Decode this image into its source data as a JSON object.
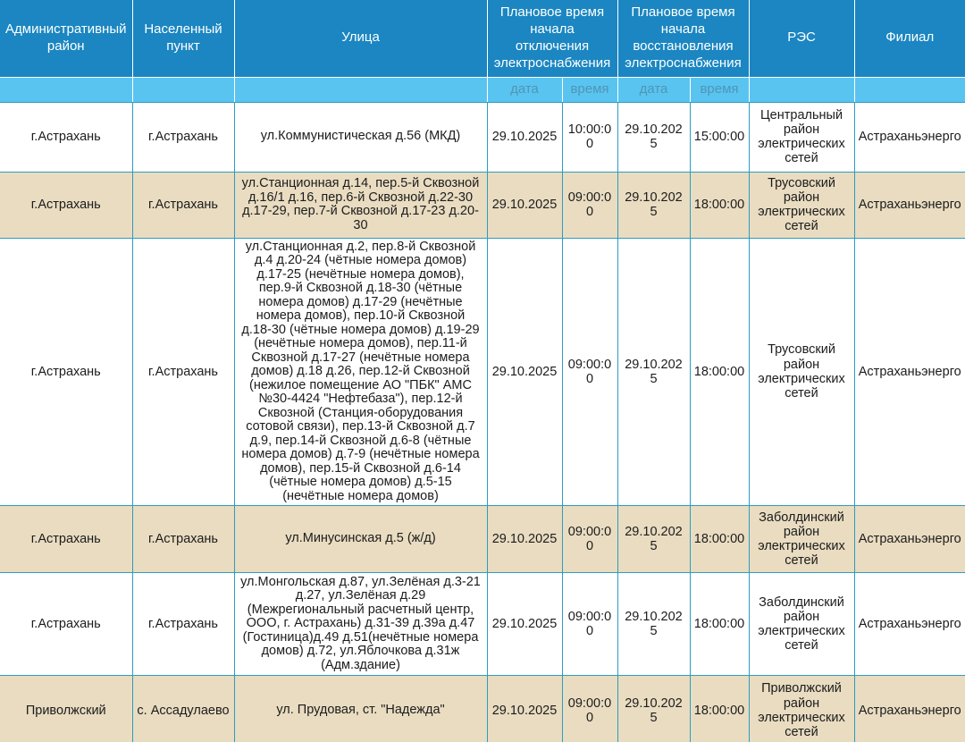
{
  "header": {
    "admin_district": "Административный район",
    "settlement": "Населенный пункт",
    "street": "Улица",
    "outage_group": "Плановое время начала отключения электроснабжения",
    "restore_group": "Плановое время начала восстановления электроснабжения",
    "res": "РЭС",
    "branch": "Филиал",
    "sub_date": "дата",
    "sub_time": "время"
  },
  "rows": [
    {
      "district": "г.Астрахань",
      "settlement": "г.Астрахань",
      "street": "ул.Коммунистическая д.56 (МКД)",
      "outage_date": "29.10.2025",
      "outage_time": "10:00:00",
      "restore_date": "29.10.2025",
      "restore_time": "15:00:00",
      "res": "Центральный район электрических сетей",
      "branch": "Астраханьэнерго"
    },
    {
      "district": "г.Астрахань",
      "settlement": "г.Астрахань",
      "street": "ул.Станционная д.14, пер.5-й Сквозной д.16/1 д.16, пер.6-й Сквозной д.22-30 д.17-29, пер.7-й Сквозной д.17-23 д.20-30",
      "outage_date": "29.10.2025",
      "outage_time": "09:00:00",
      "restore_date": "29.10.2025",
      "restore_time": "18:00:00",
      "res": "Трусовский район электрических сетей",
      "branch": "Астраханьэнерго"
    },
    {
      "district": "г.Астрахань",
      "settlement": "г.Астрахань",
      "street": "ул.Станционная д.2, пер.8-й Сквозной д.4 д.20-24 (чётные номера домов) д.17-25 (нечётные номера домов), пер.9-й Сквозной д.18-30 (чётные номера домов) д.17-29 (нечётные номера домов), пер.10-й Сквозной д.18-30 (чётные номера домов) д.19-29 (нечётные номера домов), пер.11-й Сквозной д.17-27 (нечётные номера домов) д.18 д.26, пер.12-й Сквозной (нежилое помещение АО \"ПБК\" АМС №30-4424 \"Нефтебаза\"), пер.12-й Сквозной (Станция-оборудования сотовой связи), пер.13-й Сквозной д.7 д.9, пер.14-й Сквозной д.6-8 (чётные номера домов) д.7-9 (нечётные номера домов), пер.15-й Сквозной д.6-14 (чётные номера домов) д.5-15 (нечётные номера домов)",
      "outage_date": "29.10.2025",
      "outage_time": "09:00:00",
      "restore_date": "29.10.2025",
      "restore_time": "18:00:00",
      "res": "Трусовский район электрических сетей",
      "branch": "Астраханьэнерго"
    },
    {
      "district": "г.Астрахань",
      "settlement": "г.Астрахань",
      "street": "ул.Минусинская д.5 (ж/д)",
      "outage_date": "29.10.2025",
      "outage_time": "09:00:00",
      "restore_date": "29.10.2025",
      "restore_time": "18:00:00",
      "res": "Заболдинский район электрических сетей",
      "branch": "Астраханьэнерго"
    },
    {
      "district": "г.Астрахань",
      "settlement": "г.Астрахань",
      "street": "ул.Монгольская д.87, ул.Зелёная д.3-21 д.27, ул.Зелёная д.29 (Межрегиональный расчетный центр, ООО, г. Астрахань) д.31-39 д.39а д.47 (Гостиница)д.49 д.51(нечётные номера домов) д.72, ул.Яблочкова д.31ж (Адм.здание)",
      "outage_date": "29.10.2025",
      "outage_time": "09:00:00",
      "restore_date": "29.10.2025",
      "restore_time": "18:00:00",
      "res": "Заболдинский район электрических сетей",
      "branch": "Астраханьэнерго"
    },
    {
      "district": "Приволжский",
      "settlement": "с. Ассадулаево",
      "street": "ул. Прудовая, ст. \"Надежда\"",
      "outage_date": "29.10.2025",
      "outage_time": "09:00:00",
      "restore_date": "29.10.2025",
      "restore_time": "18:00:00",
      "res": "Приволжский район электрических сетей",
      "branch": "Астраханьэнерго"
    }
  ],
  "colors": {
    "header_bg": "#1b86c1",
    "header_text": "#ffffff",
    "subheader_bg": "#5ac4f0",
    "subheader_text": "#4e96b6",
    "row_bg": "#ffffff",
    "row_alt_bg": "#e9dcc1",
    "border": "#2d9cc0",
    "body_text": "#1c1c1c"
  }
}
